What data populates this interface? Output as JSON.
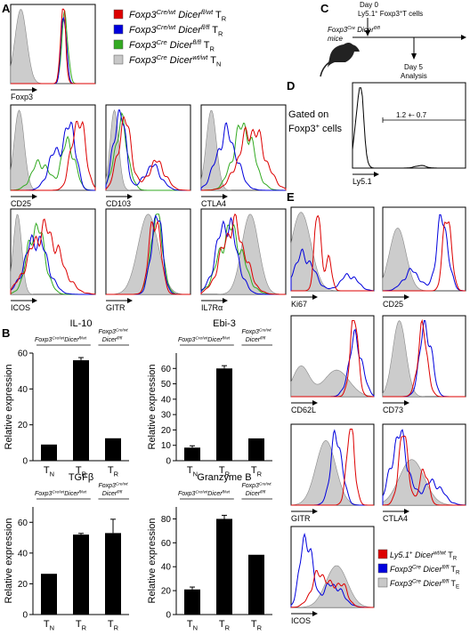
{
  "panels": {
    "a": "A",
    "b": "B",
    "c": "C",
    "d": "D",
    "e": "E"
  },
  "legend_a": [
    {
      "parts": [
        "Foxp3",
        "Cre/wt",
        " Dicer",
        "fl/wt",
        " T",
        "R"
      ],
      "color": "#dd0000"
    },
    {
      "parts": [
        "Foxp3",
        "Cre/wt",
        " Dicer",
        "fl/fl",
        " T",
        "R"
      ],
      "color": "#0000dd"
    },
    {
      "parts": [
        "Foxp3",
        "Cre",
        " Dicer",
        "fl/fl",
        " T",
        "R"
      ],
      "color": "#33aa22"
    },
    {
      "parts": [
        "Foxp3",
        "Cre",
        " Dicer",
        "wt/wt",
        " T",
        "N"
      ],
      "color": "#c8c8c8"
    }
  ],
  "legend_e": [
    {
      "parts": [
        "Ly5.1",
        "+",
        " Dicer",
        "wt/wt",
        " T",
        "R"
      ],
      "color": "#dd0000"
    },
    {
      "parts": [
        "Foxp3",
        "Cre",
        " Dicer",
        "fl/fl",
        " T",
        "R"
      ],
      "color": "#0000dd"
    },
    {
      "parts": [
        "Foxp3",
        "Cre",
        " Dicer",
        "fl/fl",
        " T",
        "E"
      ],
      "color": "#c8c8c8"
    }
  ],
  "hist_a_labels": [
    "Foxp3",
    "CD25",
    "CD103",
    "CTLA4",
    "ICOS",
    "GITR",
    "IL7Rα"
  ],
  "hist_e_labels": [
    "Ki67",
    "CD25",
    "CD62L",
    "CD73",
    "GITR",
    "CTLA4",
    "ICOS"
  ],
  "schematic": {
    "mouse_label": [
      "Foxp3",
      "Cre",
      " Dicer",
      "fl/fl"
    ],
    "mouse_label2": "mice",
    "day0": "Day 0",
    "day0_cells": [
      "Ly5.1",
      "+",
      " Foxp3",
      "+",
      "T cells"
    ],
    "day5": "Day 5",
    "day5_sub": "Analysis"
  },
  "panel_d": {
    "label1": "Gated on",
    "label2": [
      "Foxp3",
      "+",
      " cells"
    ],
    "gate_text": "1.2 +- 0.7",
    "xlabel": "Ly5.1"
  },
  "group_labels": {
    "g1": [
      "Foxp3",
      "Cre/wt",
      "Dicer",
      "fl/wt"
    ],
    "g2_line1": [
      "Foxp3",
      "Cre/wt"
    ],
    "g2_line2": [
      "Dicer",
      "fl/fl"
    ]
  },
  "chart_data": [
    {
      "type": "bar",
      "title": "IL-10",
      "categories": [
        "TN",
        "TR",
        "TR"
      ],
      "tick_labels": [
        [
          "T",
          "N"
        ],
        [
          "T",
          "R"
        ],
        [
          "T",
          "R"
        ]
      ],
      "values": [
        9,
        56,
        12.5
      ],
      "errors": [
        0,
        1.5,
        0
      ],
      "ylabel": "Relative expression",
      "ylim": [
        0,
        60
      ],
      "yticks": [
        0,
        20,
        40,
        60
      ]
    },
    {
      "type": "bar",
      "title": "Ebi-3",
      "categories": [
        "TN",
        "TR",
        "TR"
      ],
      "tick_labels": [
        [
          "T",
          "N"
        ],
        [
          "T",
          "R"
        ],
        [
          "T",
          "R"
        ]
      ],
      "values": [
        8.5,
        60,
        14.5
      ],
      "errors": [
        1.2,
        1.8,
        0
      ],
      "ylabel": "Relative expression",
      "ylim": [
        0,
        70
      ],
      "yticks": [
        0,
        10,
        20,
        30,
        40,
        50,
        60
      ]
    },
    {
      "type": "bar",
      "title": "TGFβ",
      "categories": [
        "TN",
        "TR",
        "TR"
      ],
      "tick_labels": [
        [
          "T",
          "N"
        ],
        [
          "T",
          "R"
        ],
        [
          "T",
          "R"
        ]
      ],
      "values": [
        26.5,
        52,
        53
      ],
      "errors": [
        0,
        0.8,
        9
      ],
      "ylabel": "Relative expression",
      "ylim": [
        0,
        70
      ],
      "yticks": [
        0,
        20,
        40,
        60
      ]
    },
    {
      "type": "bar",
      "title": "Granzyme B",
      "categories": [
        "TN",
        "TR",
        "TR"
      ],
      "tick_labels": [
        [
          "T",
          "N"
        ],
        [
          "T",
          "R"
        ],
        [
          "T",
          "R"
        ]
      ],
      "values": [
        21,
        80,
        50
      ],
      "errors": [
        2,
        3,
        0
      ],
      "ylabel": "Relative expression",
      "ylim": [
        0,
        90
      ],
      "yticks": [
        0,
        20,
        40,
        60,
        80
      ]
    }
  ]
}
